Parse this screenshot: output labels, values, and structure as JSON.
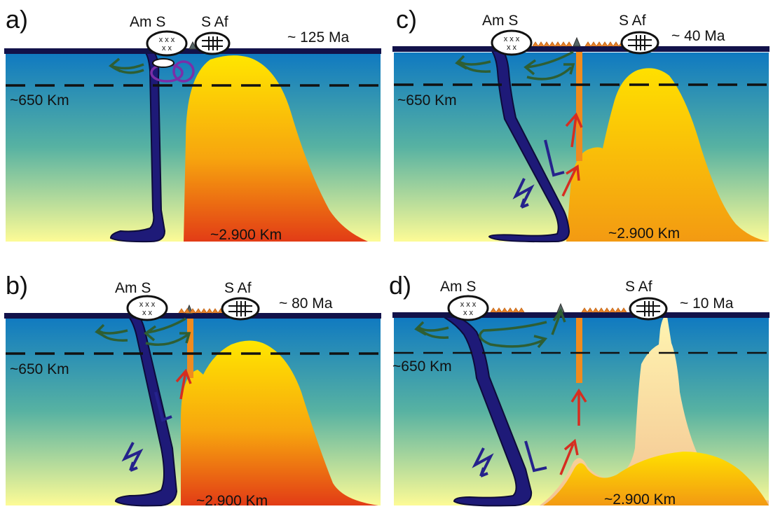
{
  "panels": [
    {
      "letter": "a)",
      "continent_left": "Am S",
      "continent_right": "S Af",
      "age": "~ 125 Ma",
      "upper_depth": "~650 Km",
      "lower_depth": "~2.900 Km"
    },
    {
      "letter": "b)",
      "continent_left": "Am S",
      "continent_right": "S Af",
      "age": "~ 80 Ma",
      "upper_depth": "~650 Km",
      "lower_depth": "~2.900 Km"
    },
    {
      "letter": "c)",
      "continent_left": "Am S",
      "continent_right": "S Af",
      "age": "~ 40 Ma",
      "upper_depth": "~650 Km",
      "lower_depth": "~2.900 Km"
    },
    {
      "letter": "d)",
      "continent_left": "Am S",
      "continent_right": "S Af",
      "age": "~ 10 Ma",
      "upper_depth": "~650 Km",
      "lower_depth": "~2.900 Km"
    }
  ],
  "colors": {
    "mantle_top": "#0f79c1",
    "mantle_mid": "#57b2a2",
    "mantle_bottom": "#fdfb96",
    "plume_top": "#ffe600",
    "plume_mid": "#f7a50e",
    "plume_bottom": "#e23c16",
    "slab": "#1e1a78",
    "lithosphere": "#12124a",
    "ridge": "#e8832a",
    "convection_arrow": "#2e5e33",
    "rise_arrow": "#d62d20",
    "slab_arrow": "#25228c",
    "plume_loop": "#7a2fa8",
    "pale_plume": "#f8dba8"
  }
}
